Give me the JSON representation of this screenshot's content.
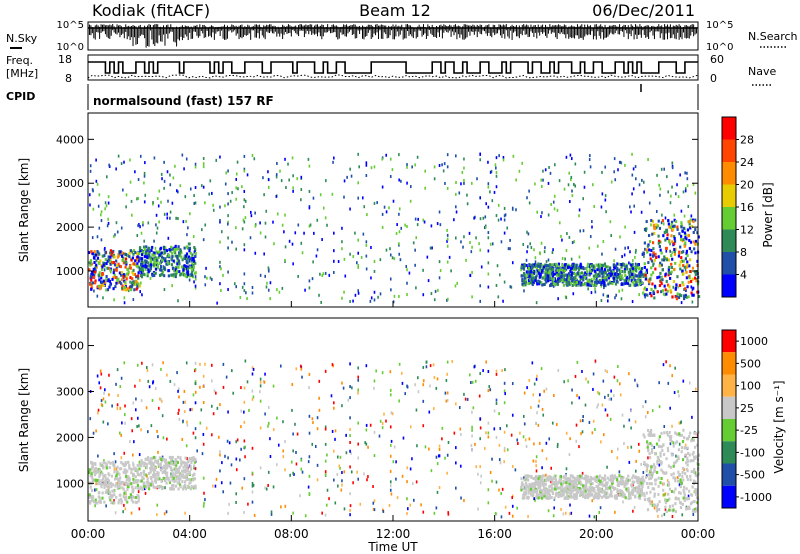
{
  "header": {
    "station": "Kodiak (fitACF)",
    "beam": "Beam 12",
    "date": "06/Dec/2011"
  },
  "top_panels": {
    "nsky_label": "N.Sky",
    "nsearch_label": "N.Search",
    "freq_label_1": "Freq.",
    "freq_label_2": "[MHz]",
    "nave_label": "Nave",
    "cpid_label": "CPID",
    "cpid_text": "normalsound (fast) 157 RF",
    "noise_ticks": [
      "10^5",
      "10^0"
    ],
    "freq_ticks": [
      "18",
      "8"
    ],
    "nave_ticks": [
      "60",
      "0"
    ]
  },
  "power_panel": {
    "ylabel": "Slant Range [km]",
    "yticks": [
      "4000",
      "3000",
      "2000",
      "1000"
    ],
    "colorbar_label": "Power [dB]",
    "colorbar_ticks": [
      "28",
      "24",
      "20",
      "16",
      "12",
      "8",
      "4"
    ],
    "colors": [
      "#0000ff",
      "#1f4fa8",
      "#2e8b57",
      "#66cc33",
      "#e6cc00",
      "#ff8c00",
      "#ff4500",
      "#ff0000"
    ]
  },
  "velocity_panel": {
    "ylabel": "Slant Range [km]",
    "yticks": [
      "4000",
      "3000",
      "2000",
      "1000"
    ],
    "colorbar_label": "Velocity [m s⁻¹]",
    "colorbar_ticks": [
      "1000",
      "500",
      "100",
      "25",
      "-25",
      "-100",
      "-500",
      "-1000"
    ],
    "colors": [
      "#0000ff",
      "#1f4fa8",
      "#2e8b57",
      "#66cc33",
      "#c8c8c8",
      "#ffb347",
      "#ff8c00",
      "#ff0000"
    ]
  },
  "x_axis": {
    "ticks": [
      "00:00",
      "04:00",
      "08:00",
      "12:00",
      "16:00",
      "20:00",
      "00:00"
    ],
    "label": "Time UT"
  },
  "chart_data": {
    "type": "heatmap",
    "x_range_hours": [
      0,
      24
    ],
    "y_range_km": [
      180,
      4600
    ],
    "power_colorbar_range_db": [
      0,
      32
    ],
    "velocity_colorbar_range": [
      -1000,
      1000
    ],
    "main_echo_regions": [
      {
        "start_hour": 0.0,
        "end_hour": 2.0,
        "range_km": [
          600,
          1500
        ],
        "power_db": [
          4,
          28
        ],
        "velocity_ms": [
          -25,
          100
        ]
      },
      {
        "start_hour": 2.0,
        "end_hour": 4.2,
        "range_km": [
          900,
          1600
        ],
        "power_db": [
          4,
          8
        ],
        "velocity_ms": [
          -25,
          25
        ]
      },
      {
        "start_hour": 17.0,
        "end_hour": 21.8,
        "range_km": [
          700,
          1200
        ],
        "power_db": [
          4,
          24
        ],
        "velocity_ms": [
          -25,
          100
        ]
      },
      {
        "start_hour": 21.8,
        "end_hour": 24.0,
        "range_km": [
          400,
          2200
        ],
        "power_db": [
          8,
          28
        ],
        "velocity_ms": [
          -25,
          100
        ]
      }
    ]
  }
}
